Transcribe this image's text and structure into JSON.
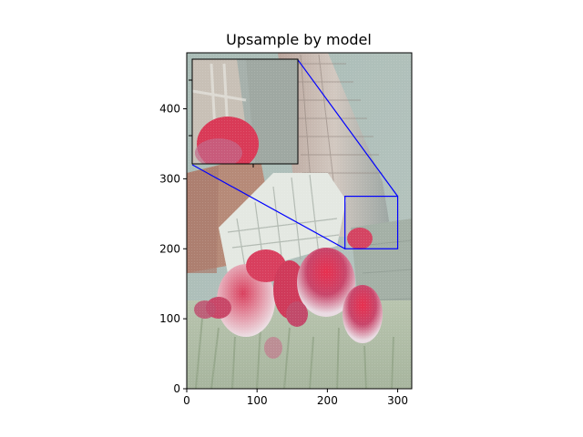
{
  "chart_data": {
    "type": "image",
    "title": "Upsample by model",
    "xlabel": "",
    "ylabel": "",
    "xlim": [
      0,
      320
    ],
    "ylim": [
      0,
      480
    ],
    "xticks": [
      0,
      100,
      200,
      300
    ],
    "yticks": [
      0,
      100,
      200,
      300,
      400
    ],
    "zoom_region": {
      "x": [
        225,
        300
      ],
      "y": [
        200,
        275
      ]
    },
    "inset_extent": {
      "x": [
        8,
        158
      ],
      "y": [
        320,
        470
      ]
    },
    "indicator_color": "#0000ff",
    "grid": false
  }
}
